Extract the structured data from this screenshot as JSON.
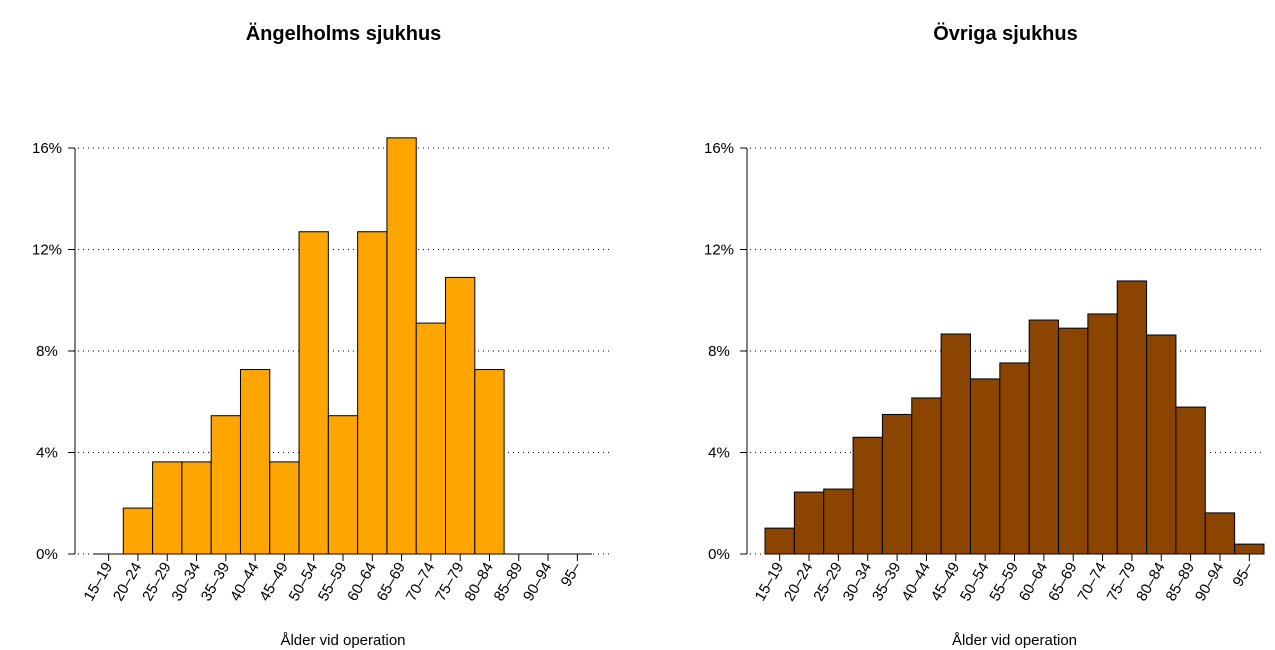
{
  "chart_data": [
    {
      "type": "bar",
      "title": "Ängelholms sjukhus",
      "xlabel": "Ålder vid operation",
      "categories": [
        "15–19",
        "20–24",
        "25–29",
        "30–34",
        "35–39",
        "40–44",
        "45–49",
        "50–54",
        "55–59",
        "60–64",
        "65–69",
        "70–74",
        "75–79",
        "80–84",
        "85–89",
        "90–94",
        "95–"
      ],
      "values": [
        0,
        1.81,
        3.63,
        3.63,
        5.45,
        7.27,
        3.63,
        12.7,
        5.45,
        12.7,
        16.4,
        9.1,
        10.9,
        7.27,
        0,
        0,
        0
      ],
      "color": "#ffa500",
      "ylim": [
        0,
        16
      ],
      "yticks": [
        {
          "value": 0,
          "label": "0%"
        },
        {
          "value": 4,
          "label": "4%"
        },
        {
          "value": 8,
          "label": "8%"
        },
        {
          "value": 12,
          "label": "12%"
        },
        {
          "value": 16,
          "label": "16%"
        }
      ],
      "grid": true
    },
    {
      "type": "bar",
      "title": "Övriga sjukhus",
      "xlabel": "Ålder vid operation",
      "categories": [
        "15–19",
        "20–24",
        "25–29",
        "30–34",
        "35–39",
        "40–44",
        "45–49",
        "50–54",
        "55–59",
        "60–64",
        "65–69",
        "70–74",
        "75–79",
        "80–84",
        "85–89",
        "90–94",
        "95–"
      ],
      "values": [
        1.02,
        2.44,
        2.56,
        4.6,
        5.5,
        6.15,
        8.67,
        6.9,
        7.53,
        9.22,
        8.9,
        9.46,
        10.76,
        8.63,
        5.79,
        1.62,
        0.39
      ],
      "color": "#8b4500",
      "ylim": [
        0,
        16
      ],
      "yticks": [
        {
          "value": 0,
          "label": "0%"
        },
        {
          "value": 4,
          "label": "4%"
        },
        {
          "value": 8,
          "label": "8%"
        },
        {
          "value": 12,
          "label": "12%"
        },
        {
          "value": 16,
          "label": "16%"
        }
      ],
      "grid": true
    }
  ]
}
